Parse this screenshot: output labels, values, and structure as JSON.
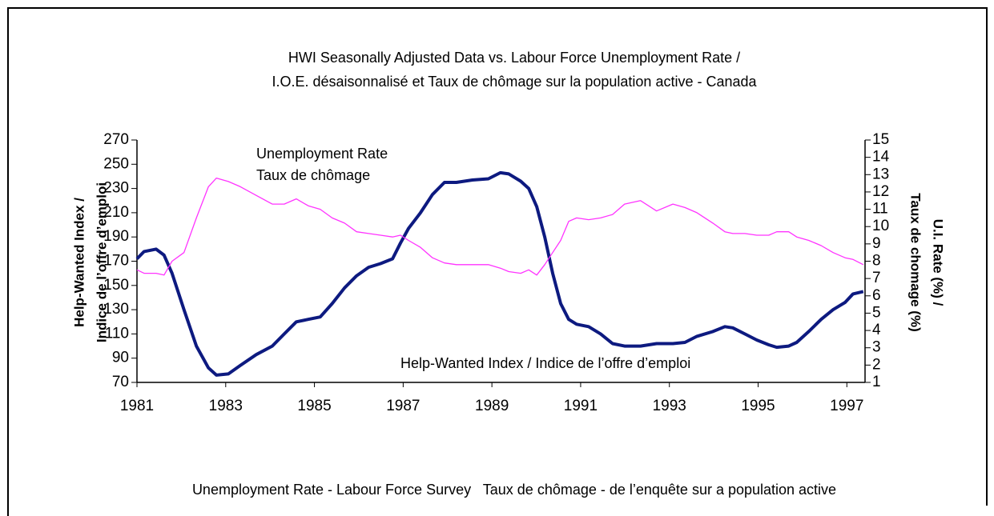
{
  "chart_data": {
    "type": "line",
    "title": "HWI Seasonally Adjusted Data vs. Labour Force Unemployment Rate /",
    "subtitle": "I.O.E. désaisonnalisé et Taux de chômage sur la population active - Canada",
    "y_label": [
      "Help-Wanted Index /",
      "Indice de l’offre d’emploi"
    ],
    "y2_label": [
      "U.I. Rate (%) /",
      "Taux de chomage (%)"
    ],
    "annotations": [
      "Unemployment Rate",
      "Taux de chômage",
      "Help-Wanted Index / Indice de l’offre d’emploi"
    ],
    "footnote": "Unemployment Rate - Labour Force Survey   Taux de chômage - de l’enquête sur a population active",
    "x": [
      1981.0,
      1981.16,
      1981.43,
      1981.61,
      1981.79,
      1982.06,
      1982.34,
      1982.61,
      1982.79,
      1983.06,
      1983.33,
      1983.69,
      1984.05,
      1984.32,
      1984.59,
      1984.86,
      1985.13,
      1985.4,
      1985.68,
      1985.95,
      1986.22,
      1986.49,
      1986.76,
      1986.94,
      1987.12,
      1987.39,
      1987.66,
      1987.93,
      1988.2,
      1988.56,
      1988.92,
      1989.19,
      1989.38,
      1989.65,
      1989.83,
      1990.01,
      1990.19,
      1990.37,
      1990.55,
      1990.73,
      1990.91,
      1991.18,
      1991.45,
      1991.72,
      1991.99,
      1992.35,
      1992.71,
      1993.08,
      1993.35,
      1993.62,
      1993.98,
      1994.25,
      1994.43,
      1994.7,
      1994.97,
      1995.24,
      1995.42,
      1995.69,
      1995.87,
      1996.14,
      1996.42,
      1996.69,
      1996.96,
      1997.14,
      1997.37
    ],
    "series": [
      {
        "name": "Help-Wanted Index",
        "color": "#0d1a80",
        "axis": "y",
        "values": [
          172,
          178,
          180,
          175,
          160,
          130,
          100,
          82,
          76,
          77,
          84,
          93,
          100,
          110,
          120,
          122,
          124,
          135,
          148,
          158,
          165,
          168,
          172,
          185,
          197,
          210,
          225,
          235,
          235,
          237,
          238,
          243,
          242,
          236,
          230,
          215,
          190,
          160,
          135,
          122,
          118,
          116,
          110,
          102,
          100,
          100,
          102,
          102,
          103,
          108,
          112,
          116,
          115,
          110,
          105,
          101,
          99,
          100,
          103,
          112,
          122,
          130,
          136,
          143,
          145
        ]
      },
      {
        "name": "Unemployment Rate",
        "color": "#ff33ff",
        "axis": "y2",
        "values": [
          7.5,
          7.3,
          7.3,
          7.2,
          8.0,
          8.5,
          10.5,
          12.3,
          12.8,
          12.6,
          12.3,
          11.8,
          11.3,
          11.3,
          11.6,
          11.2,
          11.0,
          10.5,
          10.2,
          9.7,
          9.6,
          9.5,
          9.4,
          9.5,
          9.2,
          8.8,
          8.2,
          7.9,
          7.8,
          7.8,
          7.8,
          7.6,
          7.4,
          7.3,
          7.5,
          7.2,
          7.8,
          8.5,
          9.2,
          10.3,
          10.5,
          10.4,
          10.5,
          10.7,
          11.3,
          11.5,
          10.9,
          11.3,
          11.1,
          10.8,
          10.2,
          9.7,
          9.6,
          9.6,
          9.5,
          9.5,
          9.7,
          9.7,
          9.4,
          9.2,
          8.9,
          8.5,
          8.2,
          8.1,
          7.8
        ]
      }
    ],
    "xlim": [
      1981,
      1997.41
    ],
    "xticks": [
      1981,
      1983,
      1985,
      1987,
      1989,
      1991,
      1993,
      1995,
      1997
    ],
    "ylim": [
      70,
      270
    ],
    "yticks": [
      70,
      90,
      110,
      130,
      150,
      170,
      190,
      210,
      230,
      250,
      270
    ],
    "y2lim": [
      1,
      15
    ],
    "y2ticks": [
      1,
      2,
      3,
      4,
      5,
      6,
      7,
      8,
      9,
      10,
      11,
      12,
      13,
      14,
      15
    ],
    "grid": false
  }
}
